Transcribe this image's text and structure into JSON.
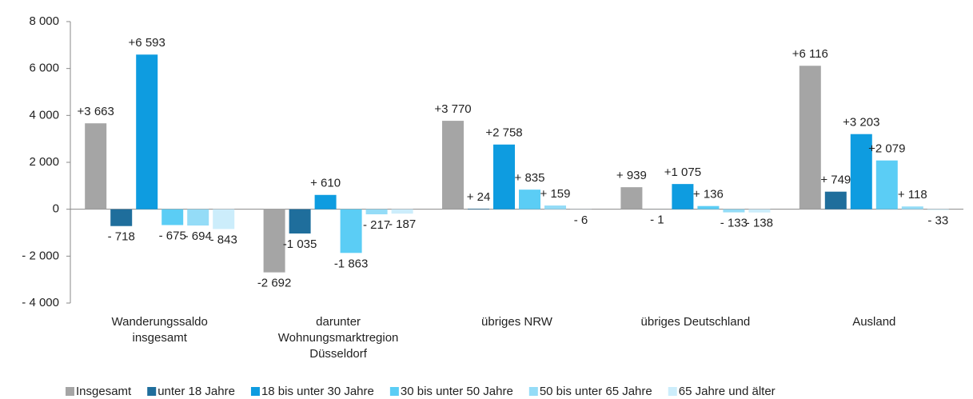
{
  "chart_data": {
    "type": "bar",
    "categories": [
      "Wanderungssaldo\ninsgesamt",
      "darunter\nWohnungsmarktregion\nDüsseldorf",
      "übriges NRW",
      "übriges Deutschland",
      "Ausland"
    ],
    "series": [
      {
        "name": "Insgesamt",
        "color": "#a5a5a5",
        "values": [
          3663,
          -2692,
          3770,
          939,
          6116
        ],
        "value_labels": [
          "+3 663",
          "-2 692",
          "+3 770",
          "+ 939",
          "+6 116"
        ]
      },
      {
        "name": "unter 18 Jahre",
        "color": "#1f6e9c",
        "values": [
          -718,
          -1035,
          24,
          -1,
          749
        ],
        "value_labels": [
          "- 718",
          "-1 035",
          "+ 24",
          "- 1",
          "+ 749"
        ]
      },
      {
        "name": "18 bis unter 30 Jahre",
        "color": "#0e9ce0",
        "values": [
          6593,
          610,
          2758,
          1075,
          3203
        ],
        "value_labels": [
          "+6 593",
          "+ 610",
          "+2 758",
          "+1 075",
          "+3 203"
        ]
      },
      {
        "name": "30 bis unter 50 Jahre",
        "color": "#5bcdf5",
        "values": [
          -675,
          -1863,
          835,
          136,
          2079
        ],
        "value_labels": [
          "- 675",
          "-1 863",
          "+ 835",
          "+ 136",
          "+2 079"
        ]
      },
      {
        "name": "50 bis unter 65 Jahre",
        "color": "#94dcf7",
        "values": [
          -694,
          -217,
          159,
          -133,
          118
        ],
        "value_labels": [
          "- 694",
          "- 217",
          "+ 159",
          "- 133",
          "+ 118"
        ]
      },
      {
        "name": "65 Jahre und älter",
        "color": "#ccedfb",
        "values": [
          -843,
          -187,
          -6,
          -138,
          -33
        ],
        "value_labels": [
          "- 843",
          "- 187",
          "- 6",
          "- 138",
          "- 33"
        ]
      }
    ],
    "ylim": [
      -4000,
      8000
    ],
    "yticks": [
      {
        "value": -4000,
        "label": "- 4 000"
      },
      {
        "value": -2000,
        "label": "- 2 000"
      },
      0,
      {
        "value": 2000,
        "label": "2 000"
      },
      {
        "value": 4000,
        "label": "4 000"
      },
      {
        "value": 6000,
        "label": "6 000"
      },
      {
        "value": 8000,
        "label": "8 000"
      }
    ],
    "legend": "bottom"
  }
}
